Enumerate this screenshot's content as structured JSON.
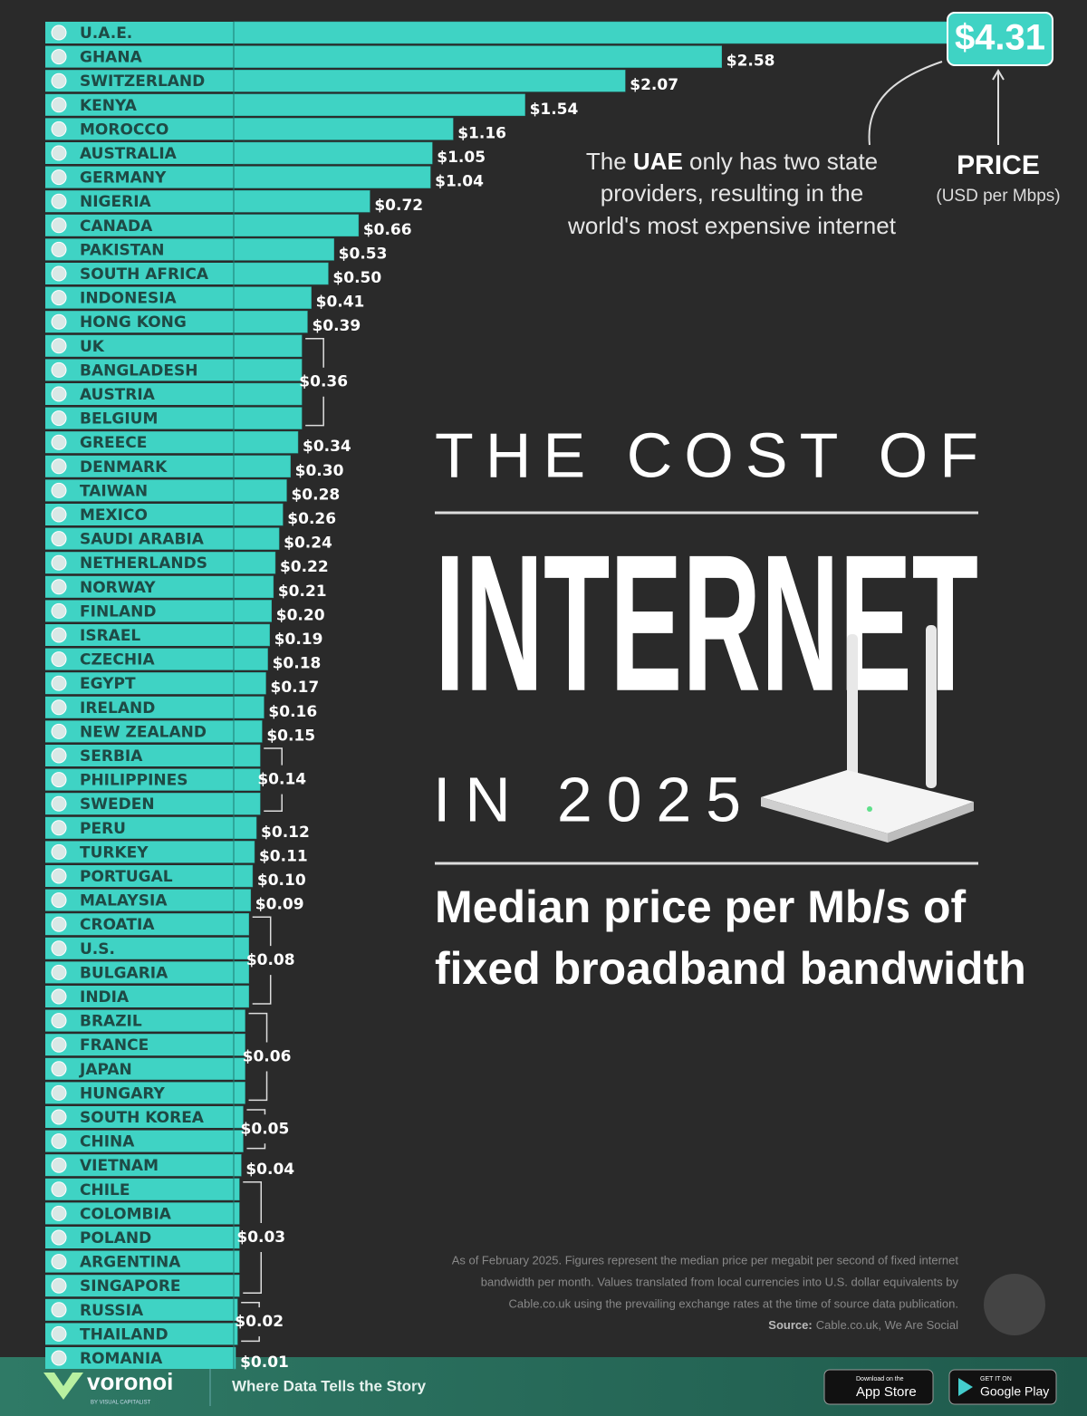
{
  "chart_data": {
    "type": "bar",
    "title_top": "THE COST OF",
    "title_main": "INTERNET",
    "title_bottom": "IN 2025",
    "subtitle": [
      "Median price per Mb/s of",
      "fixed broadband bandwidth"
    ],
    "annotation": [
      "The ",
      "UAE",
      " only has two state",
      "providers, resulting in the",
      "world's most expensive internet"
    ],
    "value_title": "PRICE",
    "value_unit": "(USD per Mbps)",
    "color": "#3fd3c4",
    "categories": [
      "U.A.E.",
      "GHANA",
      "SWITZERLAND",
      "KENYA",
      "MOROCCO",
      "AUSTRALIA",
      "GERMANY",
      "NIGERIA",
      "CANADA",
      "PAKISTAN",
      "SOUTH AFRICA",
      "INDONESIA",
      "HONG KONG",
      "UK",
      "BANGLADESH",
      "AUSTRIA",
      "BELGIUM",
      "GREECE",
      "DENMARK",
      "TAIWAN",
      "MEXICO",
      "SAUDI ARABIA",
      "NETHERLANDS",
      "NORWAY",
      "FINLAND",
      "ISRAEL",
      "CZECHIA",
      "EGYPT",
      "IRELAND",
      "NEW ZEALAND",
      "SERBIA",
      "PHILIPPINES",
      "SWEDEN",
      "PERU",
      "TURKEY",
      "PORTUGAL",
      "MALAYSIA",
      "CROATIA",
      "U.S.",
      "BULGARIA",
      "INDIA",
      "BRAZIL",
      "FRANCE",
      "JAPAN",
      "HUNGARY",
      "SOUTH KOREA",
      "CHINA",
      "VIETNAM",
      "CHILE",
      "COLOMBIA",
      "POLAND",
      "ARGENTINA",
      "SINGAPORE",
      "RUSSIA",
      "THAILAND",
      "ROMANIA"
    ],
    "values": [
      4.31,
      2.58,
      2.07,
      1.54,
      1.16,
      1.05,
      1.04,
      0.72,
      0.66,
      0.53,
      0.5,
      0.41,
      0.39,
      0.36,
      0.36,
      0.36,
      0.36,
      0.34,
      0.3,
      0.28,
      0.26,
      0.24,
      0.22,
      0.21,
      0.2,
      0.19,
      0.18,
      0.17,
      0.16,
      0.15,
      0.14,
      0.14,
      0.14,
      0.12,
      0.11,
      0.1,
      0.09,
      0.08,
      0.08,
      0.08,
      0.08,
      0.06,
      0.06,
      0.06,
      0.06,
      0.05,
      0.05,
      0.04,
      0.03,
      0.03,
      0.03,
      0.03,
      0.03,
      0.02,
      0.02,
      0.01
    ],
    "value_labels": [
      "$4.31",
      "$2.58",
      "$2.07",
      "$1.54",
      "$1.16",
      "$1.05",
      "$1.04",
      "$0.72",
      "$0.66",
      "$0.53",
      "$0.50",
      "$0.41",
      "$0.39",
      "$0.36",
      null,
      null,
      null,
      "$0.34",
      "$0.30",
      "$0.28",
      "$0.26",
      "$0.24",
      "$0.22",
      "$0.21",
      "$0.20",
      "$0.19",
      "$0.18",
      "$0.17",
      "$0.16",
      "$0.15",
      "$0.14",
      null,
      null,
      "$0.12",
      "$0.11",
      "$0.10",
      "$0.09",
      "$0.08",
      null,
      null,
      null,
      "$0.06",
      null,
      null,
      null,
      "$0.05",
      null,
      "$0.04",
      "$0.03",
      null,
      null,
      null,
      null,
      "$0.02",
      null,
      "$0.01"
    ],
    "note": [
      "As of February 2025. Figures represent the median price per megabit per second of fixed internet",
      "bandwidth per month. Values translated from local currencies into U.S. dollar equivalents by",
      "Cable.co.uk using the prevailing exchange rates at the time of source data publication."
    ],
    "source_label": "Source:",
    "source": "Cable.co.uk, We Are Social"
  },
  "footer": {
    "brand": "voronoi",
    "brand_sub": "BY VISUAL CAPITALIST",
    "tagline": "Where Data Tells the Story",
    "app_store_small": "Download on the",
    "app_store": "App Store",
    "google_small": "GET IT ON",
    "google": "Google Play"
  }
}
